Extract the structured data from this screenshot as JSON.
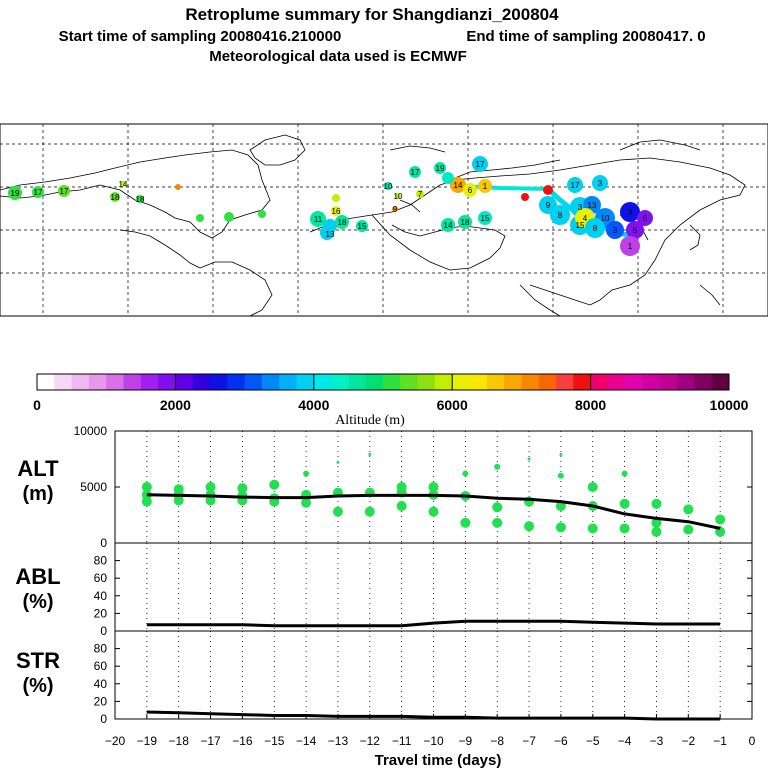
{
  "header": {
    "title": "Retroplume summary for Shangdianzi_200804",
    "sampling_start": "Start time of sampling 20080416.210000",
    "sampling_end": "End time of sampling 20080417.     0",
    "met_data": "Meteorological data used is ECMWF"
  },
  "colorbar": {
    "label": "Altitude (m)",
    "ticks": [
      "0",
      "2000",
      "4000",
      "6000",
      "8000",
      "10000"
    ],
    "colors": [
      "#ffffff",
      "#f8d8f8",
      "#f0b8f0",
      "#e898e8",
      "#d870e8",
      "#c040e8",
      "#a020f0",
      "#8010f0",
      "#6000e8",
      "#3000e0",
      "#1010e8",
      "#0030f0",
      "#0058f8",
      "#0088f8",
      "#00b0f8",
      "#00d0f0",
      "#00e8e8",
      "#00f0c8",
      "#00e8a0",
      "#00e070",
      "#30e040",
      "#60e020",
      "#90e010",
      "#c0f000",
      "#e8f000",
      "#f8e800",
      "#f8c800",
      "#f8a800",
      "#f88800",
      "#f86800",
      "#f84040",
      "#f01010",
      "#f0006a",
      "#e80090",
      "#e000b0",
      "#d000a0",
      "#c00090",
      "#a00080",
      "#800060",
      "#600040"
    ]
  },
  "map": {
    "labels": [
      "19",
      "17",
      "17",
      "18",
      "18",
      "14",
      "11",
      "13",
      "18",
      "15",
      "17",
      "19",
      "14",
      "18",
      "15",
      "17",
      "14",
      "6",
      "1",
      "9",
      "17",
      "3",
      "8",
      "3",
      "13",
      "15",
      "10",
      "4",
      "8",
      "3",
      "6",
      "5",
      "1",
      "3",
      "10",
      "10",
      "9",
      "7",
      "16"
    ]
  },
  "panels": {
    "alt": {
      "title": "ALT",
      "unit": "(m)"
    },
    "abl": {
      "title": "ABL",
      "unit": "(%)"
    },
    "str": {
      "title": "STR",
      "unit": "(%)"
    }
  },
  "chart_data": [
    {
      "type": "line",
      "title": "ALT",
      "ylabel": "(m)",
      "xlabel": "Travel time (days)",
      "x_ticks": [
        -20,
        -19,
        -18,
        -17,
        -16,
        -15,
        -14,
        -13,
        -12,
        -11,
        -10,
        -9,
        -8,
        -7,
        -6,
        -5,
        -4,
        -3,
        -2,
        -1,
        0
      ],
      "y_ticks": [
        0,
        5000,
        10000
      ],
      "xlim": [
        -20,
        0
      ],
      "ylim": [
        0,
        10000
      ],
      "mean_line": {
        "x": [
          -19,
          -18,
          -17,
          -16,
          -15,
          -14,
          -13,
          -12,
          -11,
          -10,
          -9,
          -8,
          -7,
          -6,
          -5,
          -4,
          -3,
          -2,
          -1
        ],
        "y": [
          4300,
          4250,
          4200,
          4100,
          4050,
          4050,
          4200,
          4250,
          4250,
          4250,
          4200,
          4000,
          3900,
          3700,
          3300,
          2600,
          2200,
          1900,
          1300
        ]
      },
      "cluster_points": [
        {
          "x": -19,
          "y": 5000
        },
        {
          "x": -19,
          "y": 4300
        },
        {
          "x": -19,
          "y": 3700
        },
        {
          "x": -18,
          "y": 4800
        },
        {
          "x": -18,
          "y": 4300
        },
        {
          "x": -18,
          "y": 3800
        },
        {
          "x": -17,
          "y": 5000
        },
        {
          "x": -17,
          "y": 4300
        },
        {
          "x": -17,
          "y": 3800
        },
        {
          "x": -16,
          "y": 4900
        },
        {
          "x": -16,
          "y": 4200
        },
        {
          "x": -16,
          "y": 3800
        },
        {
          "x": -15,
          "y": 5200
        },
        {
          "x": -15,
          "y": 4000
        },
        {
          "x": -15,
          "y": 3700
        },
        {
          "x": -14,
          "y": 6200
        },
        {
          "x": -14,
          "y": 4300
        },
        {
          "x": -14,
          "y": 3600
        },
        {
          "x": -13,
          "y": 7200
        },
        {
          "x": -13,
          "y": 4500
        },
        {
          "x": -13,
          "y": 2800
        },
        {
          "x": -12,
          "y": 7900
        },
        {
          "x": -12,
          "y": 4500
        },
        {
          "x": -12,
          "y": 2800
        },
        {
          "x": -11,
          "y": 5000
        },
        {
          "x": -11,
          "y": 4500
        },
        {
          "x": -11,
          "y": 3300
        },
        {
          "x": -10,
          "y": 5000
        },
        {
          "x": -10,
          "y": 4300
        },
        {
          "x": -10,
          "y": 2800
        },
        {
          "x": -9,
          "y": 6200
        },
        {
          "x": -9,
          "y": 4200
        },
        {
          "x": -9,
          "y": 1800
        },
        {
          "x": -8,
          "y": 6800
        },
        {
          "x": -8,
          "y": 3200
        },
        {
          "x": -8,
          "y": 1800
        },
        {
          "x": -7,
          "y": 7500
        },
        {
          "x": -7,
          "y": 3700
        },
        {
          "x": -7,
          "y": 1500
        },
        {
          "x": -6,
          "y": 7900
        },
        {
          "x": -6,
          "y": 6000
        },
        {
          "x": -6,
          "y": 3300
        },
        {
          "x": -6,
          "y": 1400
        },
        {
          "x": -5,
          "y": 5000
        },
        {
          "x": -5,
          "y": 3300
        },
        {
          "x": -5,
          "y": 1300
        },
        {
          "x": -4,
          "y": 6200
        },
        {
          "x": -4,
          "y": 3500
        },
        {
          "x": -4,
          "y": 1300
        },
        {
          "x": -3,
          "y": 3500
        },
        {
          "x": -3,
          "y": 1800
        },
        {
          "x": -3,
          "y": 1000
        },
        {
          "x": -2,
          "y": 3000
        },
        {
          "x": -2,
          "y": 1200
        },
        {
          "x": -1,
          "y": 2100
        },
        {
          "x": -1,
          "y": 1000
        }
      ]
    },
    {
      "type": "line",
      "title": "ABL",
      "ylabel": "(%)",
      "xlabel": "Travel time (days)",
      "y_ticks": [
        0,
        20,
        40,
        60,
        80
      ],
      "xlim": [
        -20,
        0
      ],
      "ylim": [
        0,
        100
      ],
      "mean_line": {
        "x": [
          -19,
          -18,
          -17,
          -16,
          -15,
          -14,
          -13,
          -12,
          -11,
          -10,
          -9,
          -8,
          -7,
          -6,
          -5,
          -4,
          -3,
          -2,
          -1
        ],
        "y": [
          7,
          7,
          7,
          7,
          6,
          6,
          6,
          6,
          6,
          9,
          11,
          11,
          11,
          11,
          10,
          9,
          8,
          8,
          8
        ]
      }
    },
    {
      "type": "line",
      "title": "STR",
      "ylabel": "(%)",
      "xlabel": "Travel time (days)",
      "y_ticks": [
        0,
        20,
        40,
        60,
        80
      ],
      "xlim": [
        -20,
        0
      ],
      "ylim": [
        0,
        100
      ],
      "mean_line": {
        "x": [
          -19,
          -18,
          -17,
          -16,
          -15,
          -14,
          -13,
          -12,
          -11,
          -10,
          -9,
          -8,
          -7,
          -6,
          -5,
          -4,
          -3,
          -2,
          -1
        ],
        "y": [
          8,
          7,
          6,
          5,
          4,
          4,
          3,
          3,
          3,
          2,
          2,
          1,
          1,
          1,
          1,
          1,
          0,
          0,
          0
        ]
      }
    }
  ]
}
